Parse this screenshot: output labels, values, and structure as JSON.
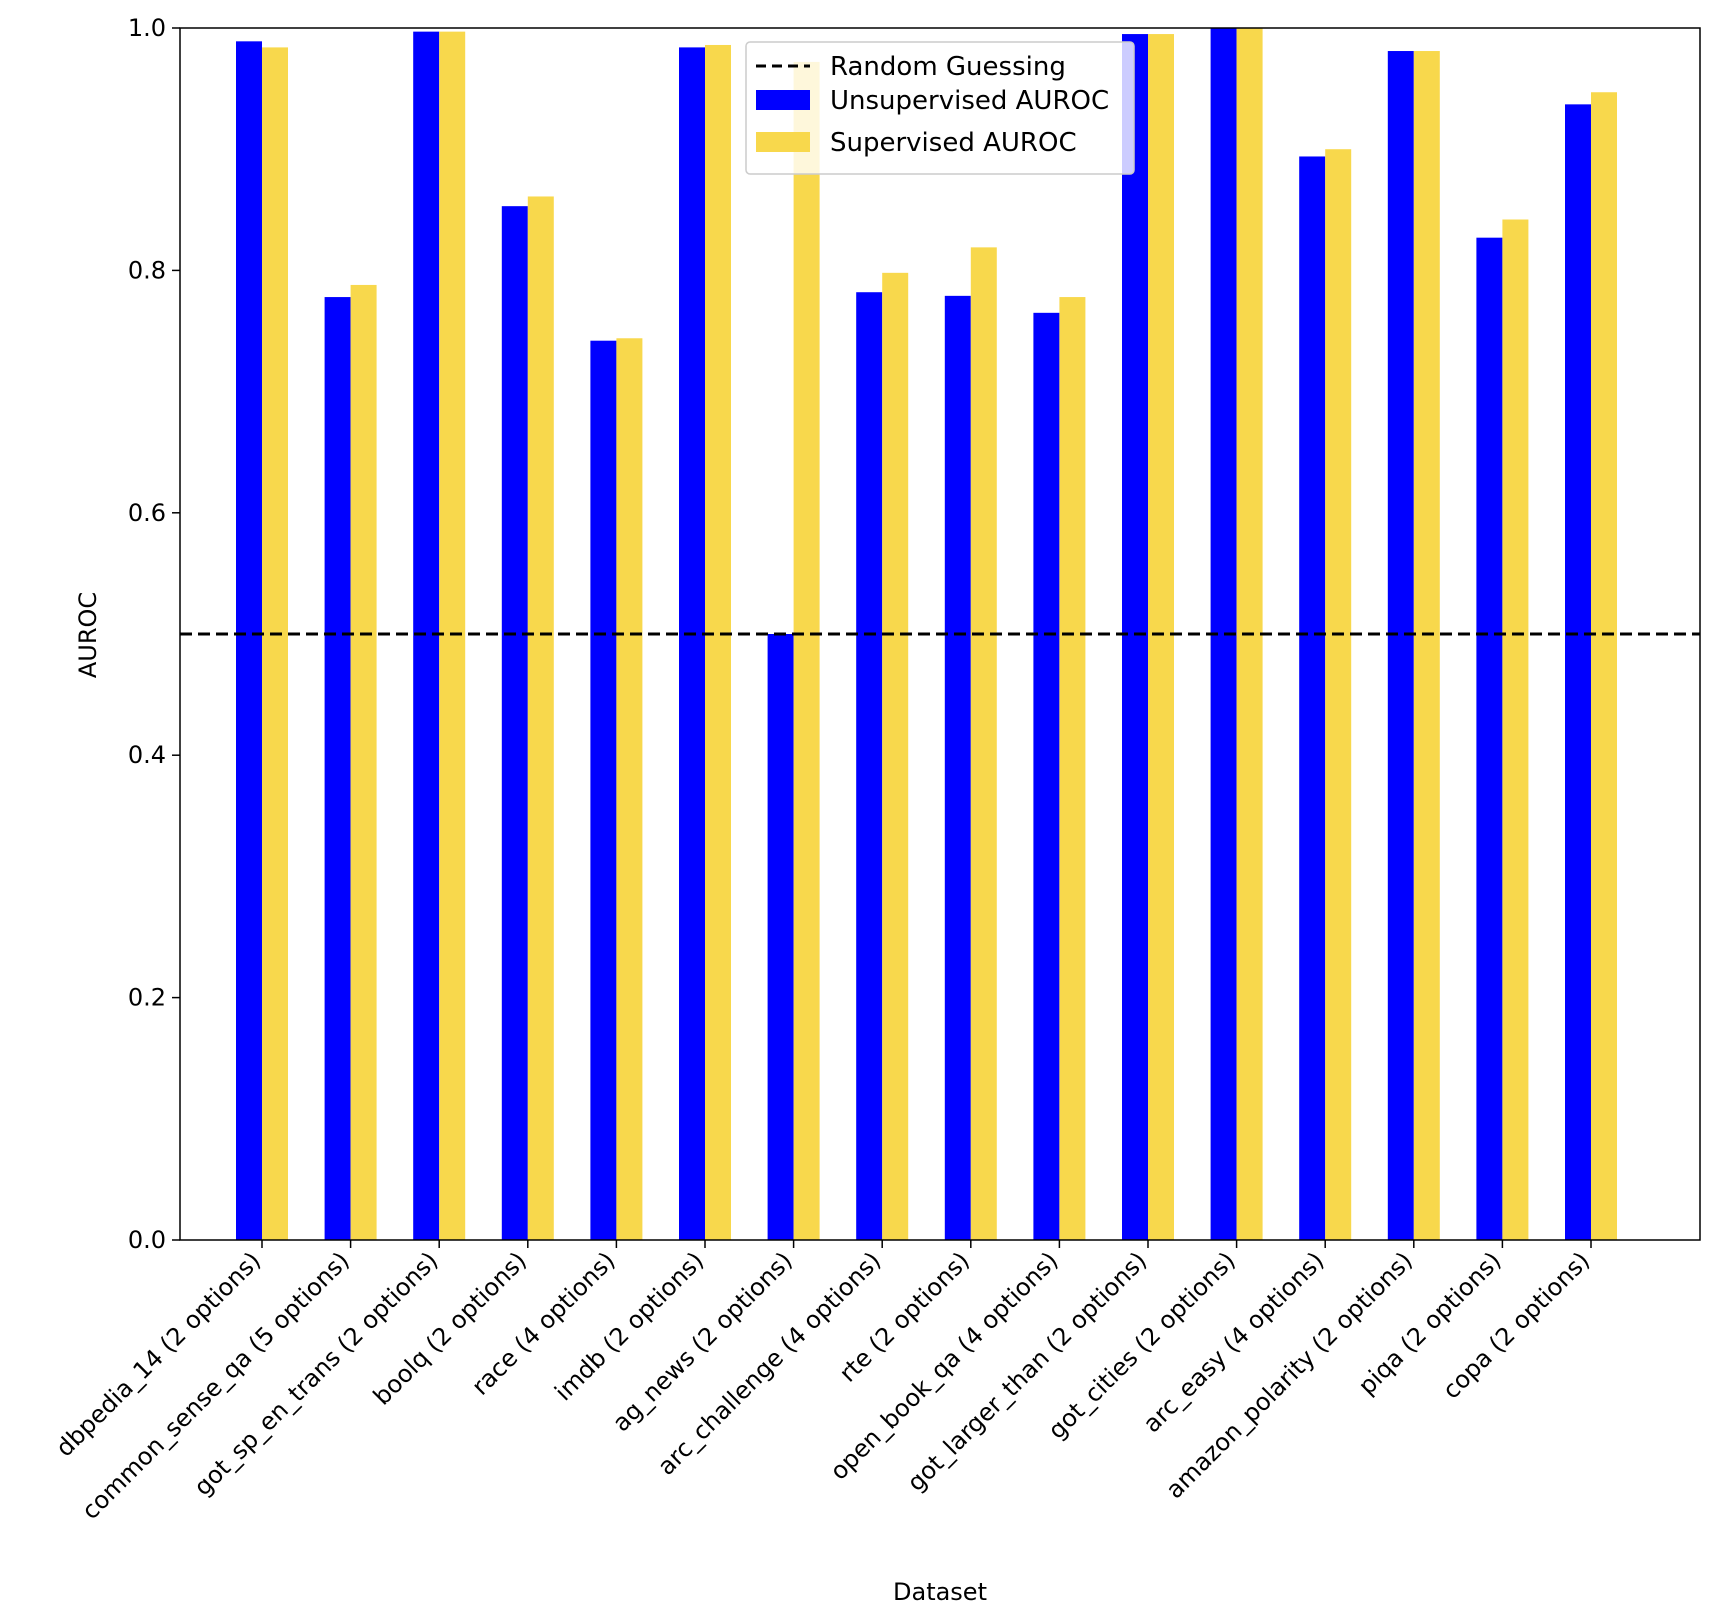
{
  "chart_data": {
    "type": "bar",
    "xlabel": "Dataset",
    "ylabel": "AUROC",
    "ylim": [
      0,
      1.0
    ],
    "yticks": [
      "0.0",
      "0.2",
      "0.4",
      "0.6",
      "0.8",
      "1.0"
    ],
    "grid": false,
    "legend_placement": "upper-center",
    "categories": [
      "dbpedia_14 (2 options)",
      "common_sense_qa (5 options)",
      "got_sp_en_trans (2 options)",
      "boolq (2 options)",
      "race (4 options)",
      "imdb (2 options)",
      "ag_news (2 options)",
      "arc_challenge (4 options)",
      "rte (2 options)",
      "open_book_qa (4 options)",
      "got_larger_than (2 options)",
      "got_cities (2 options)",
      "arc_easy (4 options)",
      "amazon_polarity (2 options)",
      "piqa (2 options)",
      "copa (2 options)"
    ],
    "series": [
      {
        "name": "Unsupervised AUROC",
        "color": "#0000ff",
        "values": [
          0.989,
          0.778,
          0.997,
          0.853,
          0.742,
          0.984,
          0.5,
          0.782,
          0.779,
          0.765,
          0.995,
          1.0,
          0.894,
          0.981,
          0.827,
          0.937
        ]
      },
      {
        "name": "Supervised AUROC",
        "color": "#f8d84c",
        "values": [
          0.984,
          0.788,
          0.997,
          0.861,
          0.744,
          0.986,
          0.972,
          0.798,
          0.819,
          0.778,
          0.995,
          1.0,
          0.9,
          0.981,
          0.842,
          0.947
        ]
      }
    ],
    "reference_line": {
      "name": "Random Guessing",
      "y": 0.5,
      "color": "#000000",
      "style": "dashed"
    }
  }
}
